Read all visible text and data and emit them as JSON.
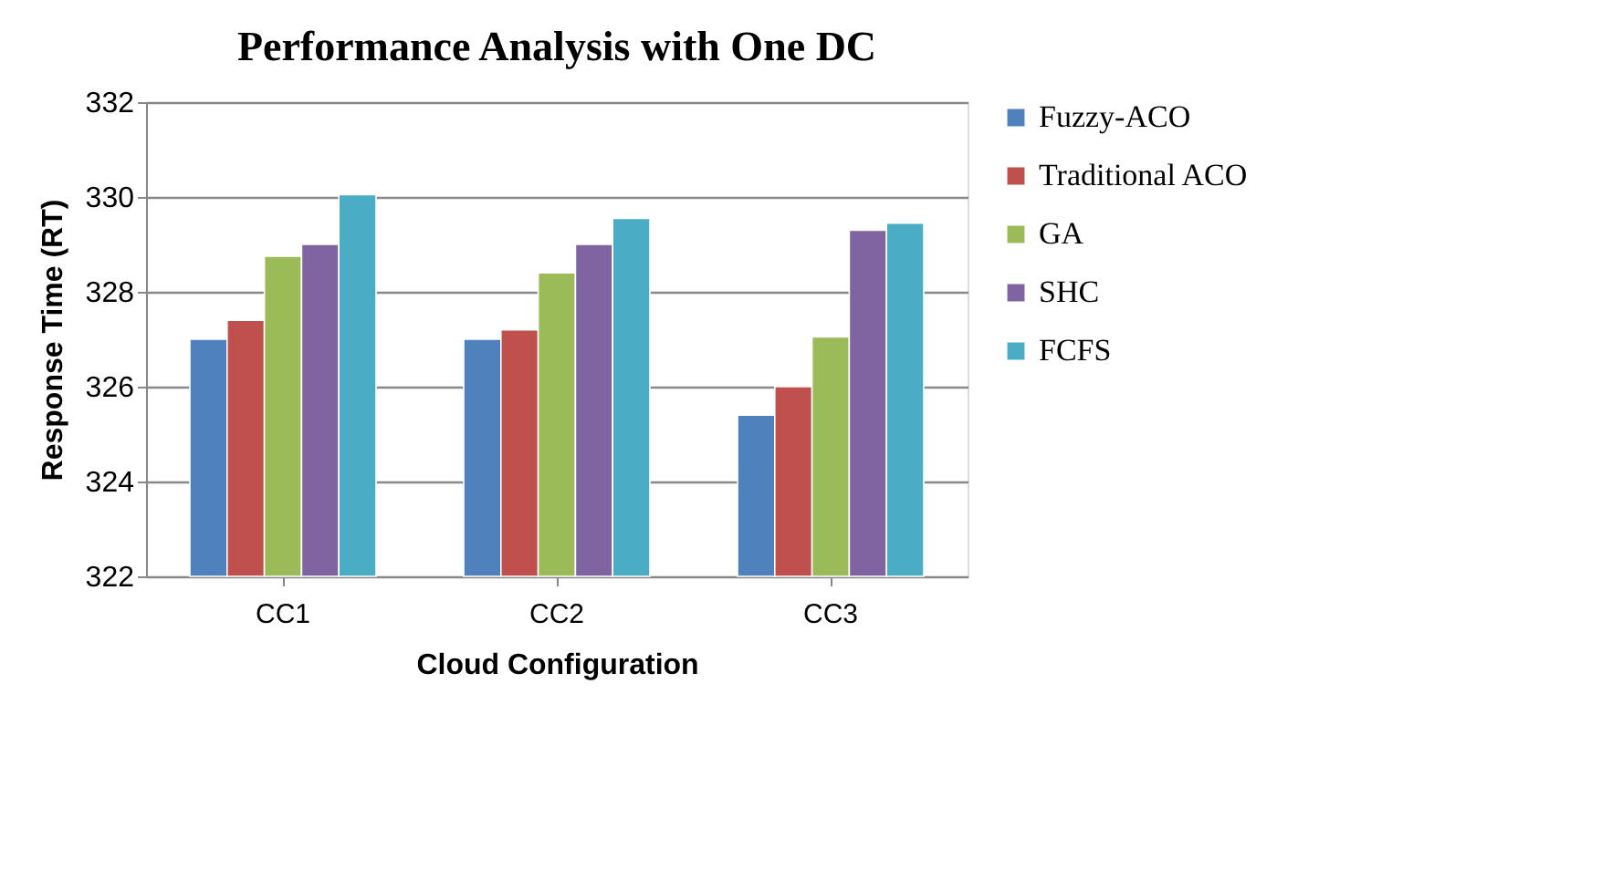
{
  "chart_data": {
    "type": "bar",
    "title": "Performance Analysis with One DC",
    "xlabel": "Cloud Configuration",
    "ylabel": "Response Time (RT)",
    "categories": [
      "CC1",
      "CC2",
      "CC3"
    ],
    "series": [
      {
        "name": "Fuzzy-ACO",
        "color": "#4f81bd",
        "values": [
          327.0,
          327.0,
          325.4
        ]
      },
      {
        "name": "Traditional ACO",
        "color": "#c0504d",
        "values": [
          327.4,
          327.2,
          326.0
        ]
      },
      {
        "name": "GA",
        "color": "#9bbb59",
        "values": [
          328.75,
          328.4,
          327.05
        ]
      },
      {
        "name": "SHC",
        "color": "#8064a2",
        "values": [
          329.0,
          329.0,
          329.3
        ]
      },
      {
        "name": "FCFS",
        "color": "#4bacc6",
        "values": [
          330.05,
          329.55,
          329.45
        ]
      }
    ],
    "ylim": [
      322,
      332
    ],
    "yticks": [
      322,
      324,
      326,
      328,
      330,
      332
    ],
    "grid": "y",
    "legend": "right"
  }
}
